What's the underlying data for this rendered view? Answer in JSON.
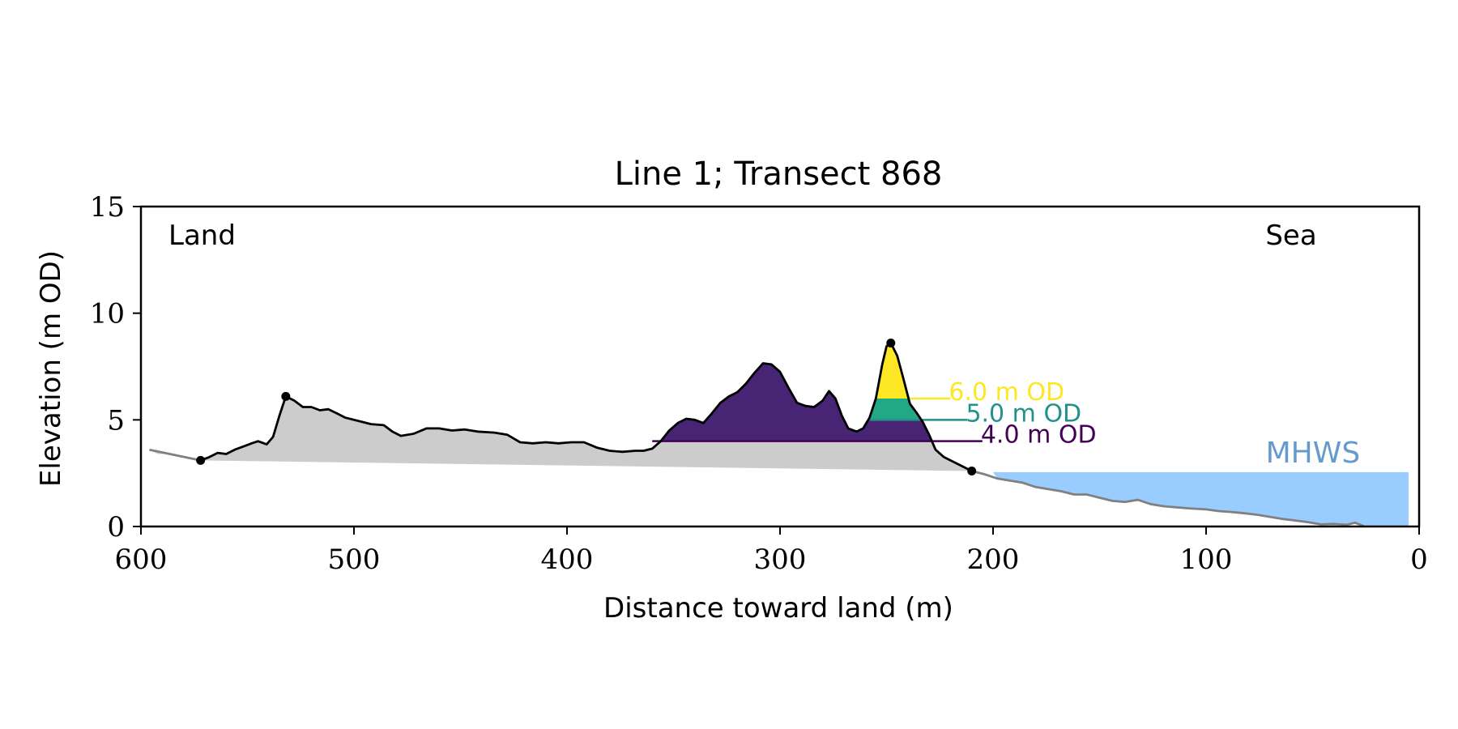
{
  "chart_data": {
    "type": "area",
    "title": "Line 1; Transect 868",
    "xlabel": "Distance toward land (m)",
    "ylabel": "Elevation (m OD)",
    "xlim": [
      600,
      0
    ],
    "ylim": [
      0,
      15
    ],
    "xticks": [
      600,
      500,
      400,
      300,
      200,
      100,
      0
    ],
    "yticks": [
      0,
      5,
      10,
      15
    ],
    "grid": false,
    "annotations": {
      "land": "Land",
      "sea": "Sea",
      "mhws": "MHWS"
    },
    "mhws": {
      "elevation": 2.55,
      "x_start": 200,
      "x_end": 5
    },
    "colors": {
      "fill": "#cccccc",
      "profile": "#000000",
      "seaward_profile": "#808080",
      "mhws": "#99ccff",
      "mhws_text": "#6699cc",
      "level_4": "#440154",
      "level_4_fill": "#482475",
      "level_5": "#21918c",
      "level_5_fill": "#22a884",
      "level_6": "#fde725"
    },
    "levels": [
      {
        "value": 4.0,
        "label": "4.0 m OD",
        "label_x": 205,
        "color": "#440154"
      },
      {
        "value": 5.0,
        "label": "5.0 m OD",
        "label_x": 212,
        "color": "#21918c"
      },
      {
        "value": 6.0,
        "label": "6.0 m OD",
        "label_x": 220,
        "color": "#fde725"
      }
    ],
    "markers": [
      {
        "x": 572,
        "y": 3.1
      },
      {
        "x": 532,
        "y": 6.1
      },
      {
        "x": 248,
        "y": 8.6
      },
      {
        "x": 210,
        "y": 2.6
      }
    ],
    "profile_land": [
      [
        596,
        3.6
      ],
      [
        592,
        3.4
      ],
      [
        588,
        3.4
      ],
      [
        583,
        3.35
      ],
      [
        578,
        3.2
      ],
      [
        572,
        3.1
      ],
      [
        568,
        3.25
      ],
      [
        564,
        3.45
      ],
      [
        560,
        3.4
      ],
      [
        556,
        3.6
      ],
      [
        552,
        3.75
      ],
      [
        548,
        3.9
      ],
      [
        545,
        4.0
      ],
      [
        541,
        3.85
      ],
      [
        538,
        4.2
      ],
      [
        535,
        5.2
      ],
      [
        532,
        6.1
      ],
      [
        528,
        5.9
      ],
      [
        524,
        5.6
      ],
      [
        520,
        5.6
      ],
      [
        516,
        5.45
      ],
      [
        512,
        5.5
      ],
      [
        508,
        5.3
      ],
      [
        504,
        5.1
      ],
      [
        498,
        4.95
      ],
      [
        492,
        4.8
      ],
      [
        486,
        4.75
      ],
      [
        482,
        4.45
      ],
      [
        478,
        4.25
      ],
      [
        472,
        4.35
      ],
      [
        466,
        4.6
      ],
      [
        460,
        4.6
      ],
      [
        454,
        4.5
      ],
      [
        448,
        4.55
      ],
      [
        442,
        4.45
      ],
      [
        434,
        4.4
      ],
      [
        428,
        4.3
      ],
      [
        422,
        3.95
      ],
      [
        416,
        3.9
      ],
      [
        410,
        3.95
      ],
      [
        404,
        3.9
      ],
      [
        398,
        3.95
      ],
      [
        392,
        3.95
      ],
      [
        386,
        3.7
      ],
      [
        380,
        3.55
      ],
      [
        374,
        3.5
      ],
      [
        368,
        3.55
      ],
      [
        364,
        3.55
      ],
      [
        360,
        3.65
      ],
      [
        356,
        4.0
      ],
      [
        352,
        4.5
      ],
      [
        348,
        4.85
      ],
      [
        344,
        5.05
      ],
      [
        340,
        5.0
      ],
      [
        336,
        4.85
      ],
      [
        332,
        5.3
      ],
      [
        328,
        5.8
      ],
      [
        324,
        6.1
      ],
      [
        320,
        6.3
      ],
      [
        316,
        6.7
      ],
      [
        312,
        7.2
      ],
      [
        308,
        7.65
      ],
      [
        304,
        7.6
      ],
      [
        300,
        7.25
      ],
      [
        296,
        6.5
      ],
      [
        292,
        5.8
      ],
      [
        288,
        5.65
      ],
      [
        284,
        5.6
      ],
      [
        280,
        5.9
      ],
      [
        277,
        6.35
      ],
      [
        274,
        6.0
      ],
      [
        271,
        5.2
      ],
      [
        268,
        4.6
      ],
      [
        264,
        4.45
      ],
      [
        261,
        4.6
      ],
      [
        258,
        5.1
      ],
      [
        255,
        6.0
      ],
      [
        252,
        7.6
      ],
      [
        250,
        8.45
      ],
      [
        248,
        8.6
      ],
      [
        245,
        8.0
      ],
      [
        242,
        6.9
      ],
      [
        239,
        5.75
      ],
      [
        236,
        5.35
      ],
      [
        233,
        4.9
      ],
      [
        230,
        4.3
      ],
      [
        227,
        3.6
      ],
      [
        223,
        3.25
      ],
      [
        218,
        3.0
      ],
      [
        214,
        2.8
      ],
      [
        210,
        2.6
      ]
    ],
    "profile_sea": [
      [
        210,
        2.6
      ],
      [
        204,
        2.45
      ],
      [
        198,
        2.25
      ],
      [
        192,
        2.15
      ],
      [
        186,
        2.05
      ],
      [
        180,
        1.85
      ],
      [
        174,
        1.75
      ],
      [
        168,
        1.65
      ],
      [
        162,
        1.5
      ],
      [
        156,
        1.5
      ],
      [
        150,
        1.35
      ],
      [
        144,
        1.2
      ],
      [
        138,
        1.15
      ],
      [
        132,
        1.25
      ],
      [
        126,
        1.05
      ],
      [
        120,
        0.95
      ],
      [
        114,
        0.9
      ],
      [
        108,
        0.85
      ],
      [
        100,
        0.8
      ],
      [
        94,
        0.72
      ],
      [
        88,
        0.68
      ],
      [
        82,
        0.62
      ],
      [
        76,
        0.55
      ],
      [
        70,
        0.45
      ],
      [
        64,
        0.35
      ],
      [
        58,
        0.28
      ],
      [
        52,
        0.2
      ],
      [
        46,
        0.1
      ],
      [
        40,
        0.12
      ],
      [
        34,
        0.08
      ],
      [
        30,
        0.18
      ],
      [
        26,
        0.02
      ]
    ],
    "baseline": [
      [
        572,
        3.1
      ],
      [
        210,
        2.6
      ]
    ]
  }
}
